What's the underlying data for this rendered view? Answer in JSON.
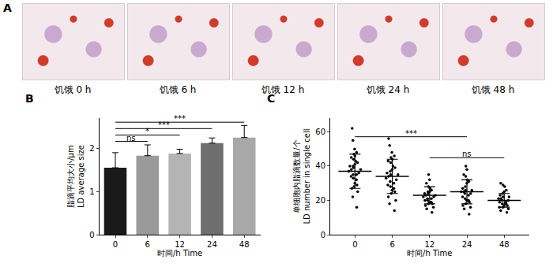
{
  "panel_a": {
    "label": "A",
    "captions": [
      "饥饿 0 h",
      "饥饿 6 h",
      "饥饿 12 h",
      "饥饿 24 h",
      "饥饿 48 h"
    ]
  },
  "chart_data": [
    {
      "label": "B",
      "type": "bar",
      "categories": [
        "0",
        "6",
        "12",
        "24",
        "48"
      ],
      "values": [
        1.55,
        1.83,
        1.88,
        2.12,
        2.25
      ],
      "errors": [
        0.35,
        0.25,
        0.1,
        0.12,
        0.28
      ],
      "colors": [
        "#1a1a1a",
        "#9a9a9a",
        "#b4b4b4",
        "#6e6e6e",
        "#a8a8a8"
      ],
      "ylim": [
        0,
        2.7
      ],
      "yticks": [
        0,
        1,
        2
      ],
      "x_label": "时间/h Time",
      "y_label": [
        "脂滴平均大小/μm",
        "LD average size"
      ],
      "significance": [
        {
          "from": "0",
          "to": "6",
          "label": "ns"
        },
        {
          "from": "0",
          "to": "12",
          "label": "*"
        },
        {
          "from": "0",
          "to": "24",
          "label": "***"
        },
        {
          "from": "0",
          "to": "48",
          "label": "***"
        }
      ]
    },
    {
      "label": "C",
      "type": "scatter",
      "marker": "circle",
      "color": "#000000",
      "categories": [
        "0",
        "6",
        "12",
        "24",
        "48"
      ],
      "points": [
        [
          62,
          55,
          50,
          48,
          47,
          46,
          45,
          44,
          43,
          42,
          41,
          40,
          40,
          39,
          38,
          38,
          37,
          36,
          35,
          35,
          34,
          33,
          32,
          30,
          29,
          28,
          27,
          25,
          22,
          16
        ],
        [
          56,
          52,
          48,
          46,
          45,
          44,
          43,
          42,
          40,
          39,
          38,
          37,
          36,
          35,
          35,
          34,
          33,
          32,
          31,
          30,
          29,
          28,
          27,
          26,
          25,
          24,
          22,
          20,
          18,
          14
        ],
        [
          35,
          32,
          30,
          28,
          27,
          26,
          25,
          25,
          24,
          24,
          23,
          23,
          22,
          22,
          21,
          21,
          20,
          20,
          19,
          19,
          18,
          18,
          17,
          16,
          15,
          13
        ],
        [
          40,
          38,
          35,
          34,
          32,
          31,
          30,
          28,
          27,
          26,
          26,
          25,
          25,
          24,
          24,
          23,
          22,
          21,
          20,
          20,
          19,
          18,
          17,
          16,
          15,
          12
        ],
        [
          30,
          29,
          28,
          26,
          25,
          24,
          23,
          22,
          22,
          21,
          21,
          20,
          20,
          19,
          19,
          18,
          18,
          17,
          17,
          16,
          16,
          15,
          14,
          13
        ]
      ],
      "means": [
        37,
        34,
        23,
        25,
        20
      ],
      "sd": [
        10,
        10,
        5,
        7,
        4
      ],
      "ylim": [
        0,
        68
      ],
      "yticks": [
        0,
        20,
        40,
        60
      ],
      "x_label": "时间/h Time",
      "y_label": [
        "单细胞内脂滴数量/个",
        "LD number in single cell"
      ],
      "significance": [
        {
          "from": "12",
          "to": "48",
          "label": "ns"
        },
        {
          "from": "0",
          "to": "24",
          "label": "***"
        }
      ]
    }
  ]
}
